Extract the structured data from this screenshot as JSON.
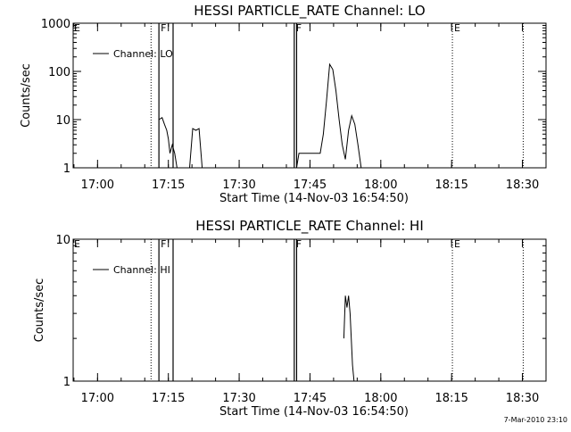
{
  "footer": {
    "stamp": "7-Mar-2010 23:10"
  },
  "chart_data": [
    {
      "type": "line",
      "title": "HESSI PARTICLE_RATE Channel: LO",
      "xlabel": "Start Time (14-Nov-03 16:54:50)",
      "ylabel": "Counts/sec",
      "y_scale": "log",
      "ylim": [
        1,
        1000
      ],
      "y_ticks": [
        {
          "v": 1,
          "label": "1"
        },
        {
          "v": 10,
          "label": "10"
        },
        {
          "v": 100,
          "label": "100"
        },
        {
          "v": 1000,
          "label": "1000"
        }
      ],
      "xlim": [
        "16:54:50",
        "18:35:00"
      ],
      "x_ticks": [
        "17:00",
        "17:15",
        "17:30",
        "17:45",
        "18:00",
        "18:15",
        "18:30"
      ],
      "legend": {
        "label": "Channel: LO",
        "position": "top-left"
      },
      "series": [
        {
          "name": "Channel: LO",
          "segments": [
            [
              [
                "17:13:00",
                10
              ],
              [
                "17:13:40",
                11
              ],
              [
                "17:14:10",
                8
              ],
              [
                "17:14:40",
                6
              ],
              [
                "17:15:00",
                4
              ],
              [
                "17:15:20",
                2
              ],
              [
                "17:15:50",
                3
              ],
              [
                "17:16:20",
                2
              ],
              [
                "17:16:50",
                1
              ]
            ],
            [
              [
                "17:19:30",
                1
              ],
              [
                "17:20:10",
                6.5
              ],
              [
                "17:20:50",
                6
              ],
              [
                "17:21:30",
                6.5
              ],
              [
                "17:22:10",
                1
              ]
            ],
            [
              [
                "17:42:10",
                1
              ],
              [
                "17:42:40",
                2
              ],
              [
                "17:47:10",
                2
              ],
              [
                "17:47:50",
                5
              ],
              [
                "17:48:30",
                25
              ],
              [
                "17:49:10",
                140
              ],
              [
                "17:49:50",
                110
              ],
              [
                "17:50:30",
                40
              ],
              [
                "17:51:10",
                10
              ],
              [
                "17:51:50",
                3
              ],
              [
                "17:52:30",
                1.5
              ],
              [
                "17:53:10",
                6
              ],
              [
                "17:53:50",
                12
              ],
              [
                "17:54:30",
                8
              ],
              [
                "17:55:10",
                3
              ],
              [
                "17:55:50",
                1
              ]
            ]
          ]
        }
      ],
      "markers": [
        {
          "label": "F",
          "lines": [
            "17:13:00",
            "17:16:00"
          ]
        },
        {
          "label": "F",
          "lines": [
            "17:41:40",
            "17:42:10"
          ]
        },
        {
          "label": "E",
          "lines": [
            "18:15:10"
          ]
        }
      ],
      "dotted_lines": [
        "17:11:20",
        "18:30:10"
      ],
      "corner_marks": [
        {
          "label": "E",
          "position": "top-left"
        }
      ]
    },
    {
      "type": "line",
      "title": "HESSI PARTICLE_RATE Channel: HI",
      "xlabel": "Start Time (14-Nov-03 16:54:50)",
      "ylabel": "Counts/sec",
      "y_scale": "log",
      "ylim": [
        1,
        10
      ],
      "y_ticks": [
        {
          "v": 1,
          "label": "1"
        },
        {
          "v": 10,
          "label": "10"
        }
      ],
      "xlim": [
        "16:54:50",
        "18:35:00"
      ],
      "x_ticks": [
        "17:00",
        "17:15",
        "17:30",
        "17:45",
        "18:00",
        "18:15",
        "18:30"
      ],
      "legend": {
        "label": "Channel: HI",
        "position": "top-left"
      },
      "series": [
        {
          "name": "Channel: HI",
          "segments": [
            [
              [
                "17:52:10",
                2
              ],
              [
                "17:52:30",
                4
              ],
              [
                "17:52:50",
                3.3
              ],
              [
                "17:53:10",
                4
              ],
              [
                "17:53:30",
                3
              ],
              [
                "17:54:00",
                1.3
              ],
              [
                "17:54:20",
                1
              ]
            ]
          ]
        }
      ],
      "markers": [
        {
          "label": "F",
          "lines": [
            "17:13:00",
            "17:16:00"
          ]
        },
        {
          "label": "F",
          "lines": [
            "17:41:40",
            "17:42:10"
          ]
        },
        {
          "label": "E",
          "lines": [
            "18:15:10"
          ]
        }
      ],
      "dotted_lines": [
        "17:11:20",
        "18:30:10"
      ],
      "corner_marks": [
        {
          "label": "E",
          "position": "top-left"
        }
      ]
    }
  ]
}
